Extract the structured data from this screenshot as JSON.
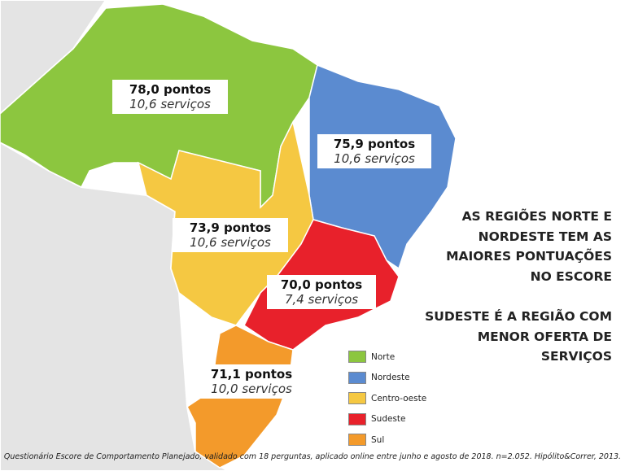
{
  "regions": [
    {
      "name": "Norte",
      "color": "#8cc63f",
      "score": "78,0 pontos",
      "services": "10,6 serviços"
    },
    {
      "name": "Nordeste",
      "color": "#5b8bd0",
      "score": "75,9 pontos",
      "services": "10,6 serviços"
    },
    {
      "name": "Centro-oeste",
      "color": "#f5c842",
      "score": "73,9 pontos",
      "services": "10,6 serviços"
    },
    {
      "name": "Sudeste",
      "color": "#e8212b",
      "score": "70,0 pontos",
      "services": "7,4 serviços"
    },
    {
      "name": "Sul",
      "color": "#f39a2b",
      "score": "71,1 pontos",
      "services": "10,0 serviços"
    }
  ],
  "headline": {
    "lines": [
      "AS REGIÕES NORTE E",
      "NORDESTE TEM AS",
      "MAIORES PONTUAÇÕES",
      "NO ESCORE"
    ]
  },
  "subheadline": {
    "lines": [
      "SUDESTE É A REGIÃO COM",
      "MENOR OFERTA DE",
      "SERVIÇOS"
    ]
  },
  "footnote": "Questionário Escore de Comportamento Planejado, validado com 18 perguntas, aplicado online entre junho e agosto de 2018. n=2.052. Hipólito&Correr, 2013."
}
